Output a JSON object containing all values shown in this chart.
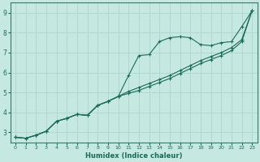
{
  "xlabel": "Humidex (Indice chaleur)",
  "ylabel": "",
  "bg_color": "#c5e8e0",
  "grid_color": "#afd8ce",
  "line_color": "#1a6b5a",
  "spine_color": "#3a7a6a",
  "xlim": [
    -0.5,
    23.5
  ],
  "ylim": [
    2.5,
    9.5
  ],
  "xticks": [
    0,
    1,
    2,
    3,
    4,
    5,
    6,
    7,
    8,
    9,
    10,
    11,
    12,
    13,
    14,
    15,
    16,
    17,
    18,
    19,
    20,
    21,
    22,
    23
  ],
  "yticks": [
    3,
    4,
    5,
    6,
    7,
    8,
    9
  ],
  "series1": [
    [
      0,
      2.75
    ],
    [
      1,
      2.7
    ],
    [
      2,
      2.85
    ],
    [
      3,
      3.05
    ],
    [
      4,
      3.55
    ],
    [
      5,
      3.7
    ],
    [
      6,
      3.9
    ],
    [
      7,
      3.85
    ],
    [
      8,
      4.35
    ],
    [
      9,
      4.55
    ],
    [
      10,
      4.8
    ],
    [
      11,
      5.85
    ],
    [
      12,
      6.85
    ],
    [
      13,
      6.9
    ],
    [
      14,
      7.55
    ],
    [
      15,
      7.75
    ],
    [
      16,
      7.8
    ],
    [
      17,
      7.75
    ],
    [
      18,
      7.4
    ],
    [
      19,
      7.35
    ],
    [
      20,
      7.5
    ],
    [
      21,
      7.55
    ],
    [
      22,
      8.3
    ],
    [
      23,
      9.1
    ]
  ],
  "series2": [
    [
      0,
      2.75
    ],
    [
      1,
      2.7
    ],
    [
      2,
      2.85
    ],
    [
      3,
      3.05
    ],
    [
      4,
      3.55
    ],
    [
      5,
      3.7
    ],
    [
      6,
      3.9
    ],
    [
      7,
      3.85
    ],
    [
      8,
      4.35
    ],
    [
      9,
      4.55
    ],
    [
      10,
      4.8
    ],
    [
      11,
      4.95
    ],
    [
      12,
      5.1
    ],
    [
      13,
      5.3
    ],
    [
      14,
      5.5
    ],
    [
      15,
      5.7
    ],
    [
      16,
      5.95
    ],
    [
      17,
      6.2
    ],
    [
      18,
      6.45
    ],
    [
      19,
      6.65
    ],
    [
      20,
      6.85
    ],
    [
      21,
      7.1
    ],
    [
      22,
      7.55
    ],
    [
      23,
      9.1
    ]
  ],
  "series3": [
    [
      0,
      2.75
    ],
    [
      1,
      2.7
    ],
    [
      2,
      2.85
    ],
    [
      3,
      3.05
    ],
    [
      4,
      3.55
    ],
    [
      5,
      3.7
    ],
    [
      6,
      3.9
    ],
    [
      7,
      3.85
    ],
    [
      8,
      4.35
    ],
    [
      9,
      4.55
    ],
    [
      10,
      4.8
    ],
    [
      11,
      5.05
    ],
    [
      12,
      5.25
    ],
    [
      13,
      5.45
    ],
    [
      14,
      5.65
    ],
    [
      15,
      5.85
    ],
    [
      16,
      6.1
    ],
    [
      17,
      6.35
    ],
    [
      18,
      6.6
    ],
    [
      19,
      6.8
    ],
    [
      20,
      7.0
    ],
    [
      21,
      7.25
    ],
    [
      22,
      7.65
    ],
    [
      23,
      9.1
    ]
  ]
}
